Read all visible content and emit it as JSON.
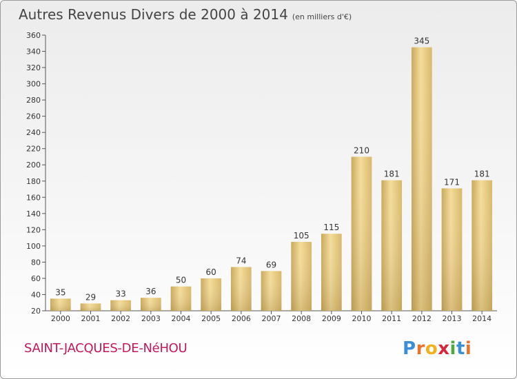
{
  "chart_data": {
    "type": "bar",
    "title": "Autres Revenus Divers de 2000 à 2014",
    "unit": "(en milliers d'€)",
    "categories": [
      "2000",
      "2001",
      "2002",
      "2003",
      "2004",
      "2005",
      "2006",
      "2007",
      "2008",
      "2009",
      "2010",
      "2011",
      "2012",
      "2013",
      "2014"
    ],
    "values": [
      35,
      29,
      33,
      36,
      50,
      60,
      74,
      69,
      105,
      115,
      210,
      181,
      345,
      171,
      181
    ],
    "ylim": [
      20,
      360
    ],
    "yticks": [
      20,
      40,
      60,
      80,
      100,
      120,
      140,
      160,
      180,
      200,
      220,
      240,
      260,
      280,
      300,
      320,
      340,
      360
    ],
    "grid": false,
    "bar_color": "#e2c77a"
  },
  "location": "SAINT-JACQUES-DE-NéHOU",
  "logo": {
    "text": "Proxiti",
    "letter_colors": [
      "#3a8fd8",
      "#e8732c",
      "#f2b01f",
      "#d8263a",
      "#4caa3c",
      "#3a8fd8",
      "#e8732c"
    ]
  }
}
